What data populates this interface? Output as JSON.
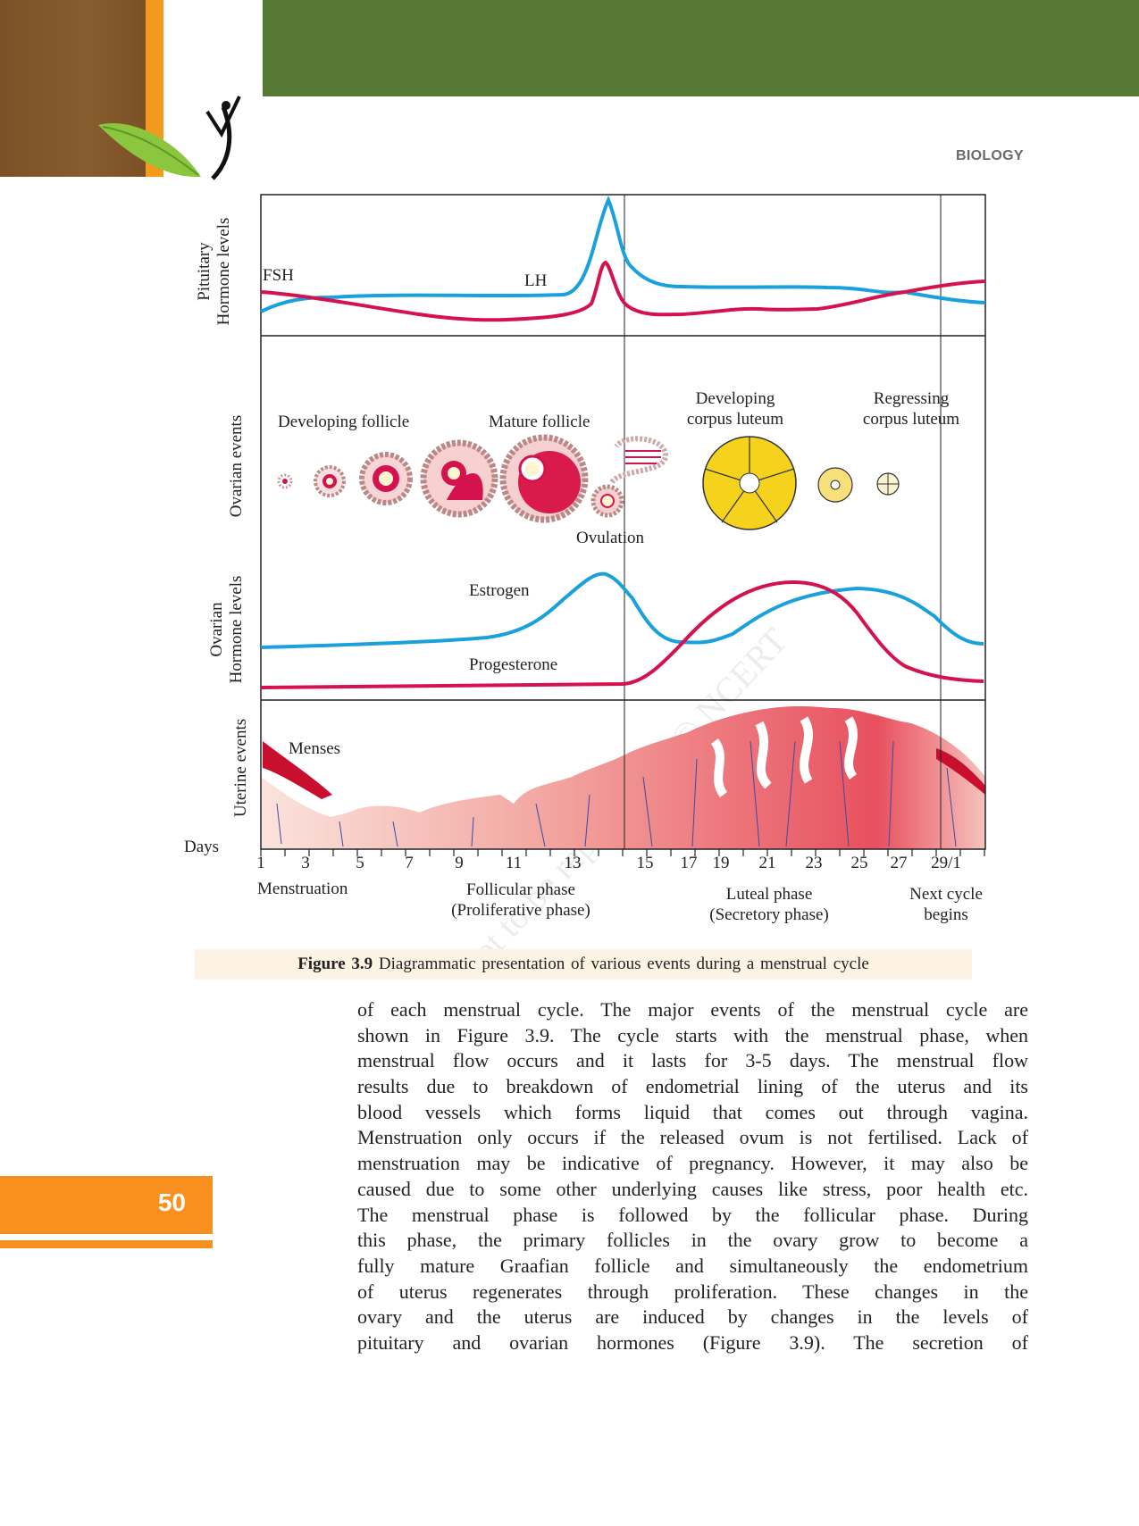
{
  "header": {
    "subject": "BIOLOGY"
  },
  "figure": {
    "panel_labels": {
      "pituitary": [
        "Pituitary",
        "Hormone levels"
      ],
      "ovarian_events": "Ovarian events",
      "ovarian_hormones": [
        "Ovarian",
        "Hormone levels"
      ],
      "uterine_events": "Uterine events"
    },
    "curve_labels": {
      "fsh": "FSH",
      "lh": "LH",
      "estrogen": "Estrogen",
      "progesterone": "Progesterone"
    },
    "ovarian_labels": {
      "developing_follicle": "Developing follicle",
      "mature_follicle": "Mature follicle",
      "developing_corpus_luteum": [
        "Developing",
        "corpus luteum"
      ],
      "regressing_corpus_luteum": [
        "Regressing",
        "corpus luteum"
      ],
      "ovulation": "Ovulation"
    },
    "menses": "Menses",
    "days_label": "Days",
    "day_ticks": [
      "1",
      "3",
      "5",
      "7",
      "9",
      "11",
      "13",
      "15",
      "17",
      "19",
      "21",
      "23",
      "25",
      "27",
      "29/1"
    ],
    "phases": {
      "menstruation": "Menstruation",
      "follicular": [
        "Follicular phase",
        "(Proliferative phase)"
      ],
      "luteal": [
        "Luteal phase",
        "(Secretory phase)"
      ],
      "next": [
        "Next cycle",
        "begins"
      ]
    },
    "colors": {
      "lh_estrogen": "#1aa0dc",
      "fsh_progesterone": "#d4124e",
      "corpus_luteum": "#f5d21c"
    },
    "caption_number": "Figure 3.9",
    "caption_text": "Diagrammatic presentation of various events during a menstrual cycle"
  },
  "watermark": "not to be republished © NCERT",
  "body_lines": [
    "of each menstrual cycle. The major events of the menstrual cycle are",
    "shown in Figure 3.9. The cycle starts with the menstrual phase, when",
    "menstrual flow occurs and it lasts for 3-5 days. The menstrual flow",
    "results due to breakdown of endometrial lining of the uterus and its",
    "blood vessels which forms liquid that comes out through vagina.",
    "Menstruation only occurs if the released ovum is not fertilised. Lack of",
    "menstruation may be indicative of pregnancy. However, it may also be",
    "caused due to some other underlying causes like stress, poor health etc.",
    "The menstrual phase is followed by the follicular phase. During",
    "this phase, the primary follicles in the ovary grow to become a",
    "fully mature Graafian follicle and simultaneously the endometrium",
    "of uterus regenerates through proliferation. These changes in the",
    "ovary and the uterus are induced by changes in the levels of",
    "pituitary and ovarian hormones (Figure 3.9). The secretion of"
  ],
  "page_number": "50"
}
